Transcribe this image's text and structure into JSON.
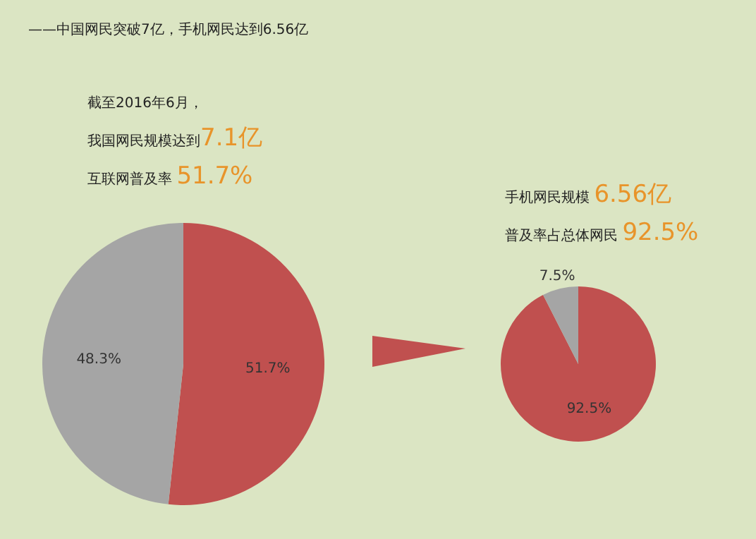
{
  "chart_data": [
    {
      "type": "pie",
      "title": "——中国网民突破7亿，手机网民达到6.56亿",
      "annotations": [
        "截至2016年6月，",
        "我国网民规模达到7.1亿",
        "互联网普及率 51.7%"
      ],
      "categories": [
        null,
        null
      ],
      "values": [
        51.7,
        48.3
      ],
      "colors": [
        "#c0504f",
        "#a5a5a5"
      ],
      "value_labels": [
        "51.7%",
        "48.3%"
      ]
    },
    {
      "type": "pie",
      "annotations": [
        "手机网民规模 6.56亿",
        "普及率占总体网民 92.5%"
      ],
      "categories": [
        null,
        null
      ],
      "values": [
        92.5,
        7.5
      ],
      "colors": [
        "#c0504f",
        "#a5a5a5"
      ],
      "value_labels": [
        "92.5%",
        "7.5%"
      ]
    }
  ]
}
